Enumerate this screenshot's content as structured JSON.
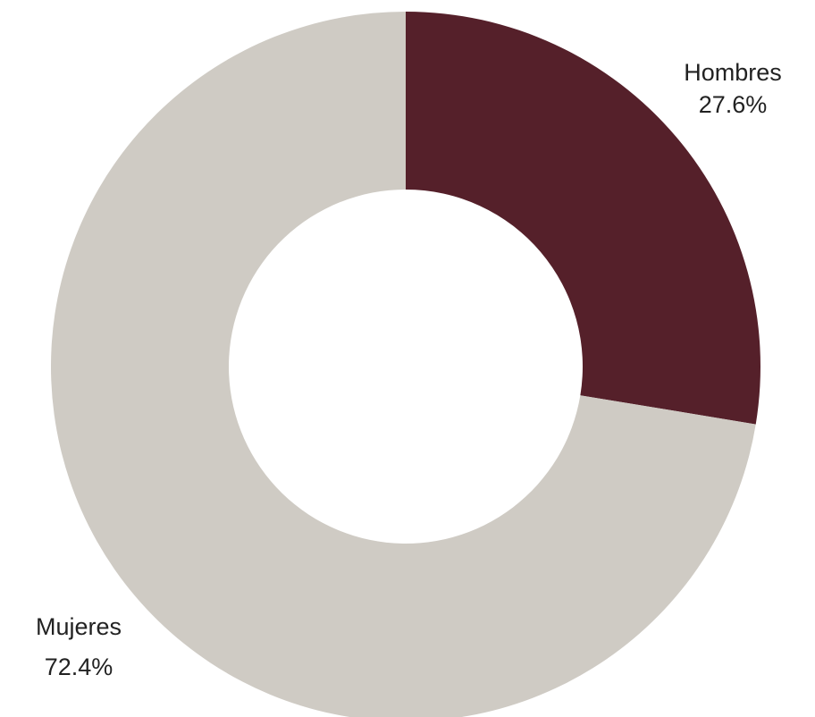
{
  "chart_data": {
    "type": "pie",
    "donut": true,
    "title": "",
    "slices": [
      {
        "label": "Hombres",
        "value": 27.6,
        "value_label": "27.6%",
        "color": "#55202a"
      },
      {
        "label": "Mujeres",
        "value": 72.4,
        "value_label": "72.4%",
        "color": "#cfcbc4"
      }
    ],
    "start_angle": "12 o'clock",
    "direction": "clockwise"
  }
}
